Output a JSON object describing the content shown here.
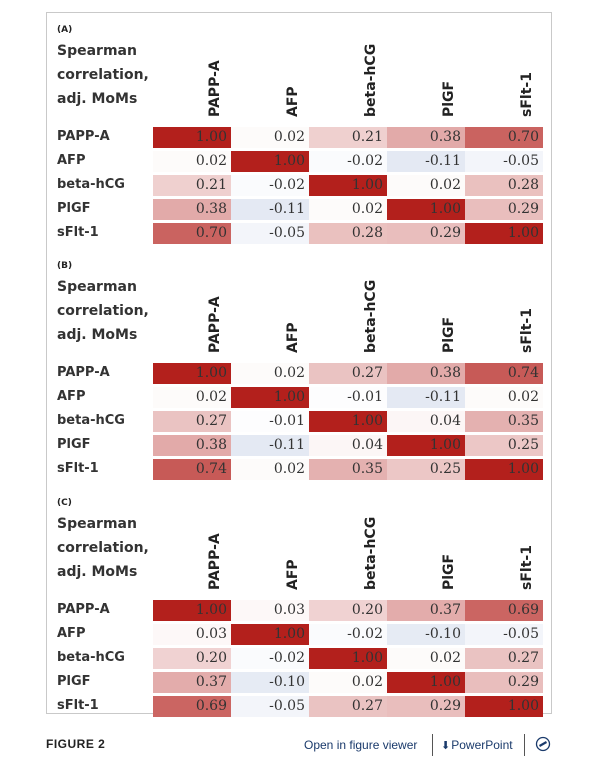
{
  "chart_data": [
    {
      "type": "heatmap",
      "panel": "(A)",
      "title_lines": [
        "Spearman",
        "correlation,",
        "adj. MoMs"
      ],
      "columns": [
        "PAPP-A",
        "AFP",
        "beta-hCG",
        "PlGF",
        "sFlt-1"
      ],
      "rows": [
        "PAPP-A",
        "AFP",
        "beta-hCG",
        "PlGF",
        "sFlt-1"
      ],
      "values": [
        [
          "1.00",
          "0.02",
          "0.21",
          "0.38",
          "0.70"
        ],
        [
          "0.02",
          "1.00",
          "-0.02",
          "-0.11",
          "-0.05"
        ],
        [
          "0.21",
          "-0.02",
          "1.00",
          "0.02",
          "0.28"
        ],
        [
          "0.38",
          "-0.11",
          "0.02",
          "1.00",
          "0.29"
        ],
        [
          "0.70",
          "-0.05",
          "0.28",
          "0.29",
          "1.00"
        ]
      ]
    },
    {
      "type": "heatmap",
      "panel": "(B)",
      "title_lines": [
        "Spearman",
        "correlation,",
        "adj. MoMs"
      ],
      "columns": [
        "PAPP-A",
        "AFP",
        "beta-hCG",
        "PlGF",
        "sFlt-1"
      ],
      "rows": [
        "PAPP-A",
        "AFP",
        "beta-hCG",
        "PlGF",
        "sFlt-1"
      ],
      "values": [
        [
          "1.00",
          "0.02",
          "0.27",
          "0.38",
          "0.74"
        ],
        [
          "0.02",
          "1.00",
          "-0.01",
          "-0.11",
          "0.02"
        ],
        [
          "0.27",
          "-0.01",
          "1.00",
          "0.04",
          "0.35"
        ],
        [
          "0.38",
          "-0.11",
          "0.04",
          "1.00",
          "0.25"
        ],
        [
          "0.74",
          "0.02",
          "0.35",
          "0.25",
          "1.00"
        ]
      ]
    },
    {
      "type": "heatmap",
      "panel": "(C)",
      "title_lines": [
        "Spearman",
        "correlation,",
        "adj. MoMs"
      ],
      "columns": [
        "PAPP-A",
        "AFP",
        "beta-hCG",
        "PlGF",
        "sFlt-1"
      ],
      "rows": [
        "PAPP-A",
        "AFP",
        "beta-hCG",
        "PlGF",
        "sFlt-1"
      ],
      "values": [
        [
          "1.00",
          "0.03",
          "0.20",
          "0.37",
          "0.69"
        ],
        [
          "0.03",
          "1.00",
          "-0.02",
          "-0.10",
          "-0.05"
        ],
        [
          "0.20",
          "-0.02",
          "1.00",
          "0.02",
          "0.27"
        ],
        [
          "0.37",
          "-0.10",
          "0.02",
          "1.00",
          "0.29"
        ],
        [
          "0.69",
          "-0.05",
          "0.27",
          "0.29",
          "1.00"
        ]
      ]
    }
  ],
  "colors": {
    "positive_max": "#b3201c",
    "negative": "#e4e9f3",
    "neutral": "#ffffff"
  },
  "footer": {
    "caption": "FIGURE 2",
    "open_viewer": "Open in figure viewer",
    "powerpoint": "PowerPoint",
    "download_icon": "download-arrow-icon",
    "cite_icon": "cite-icon"
  }
}
